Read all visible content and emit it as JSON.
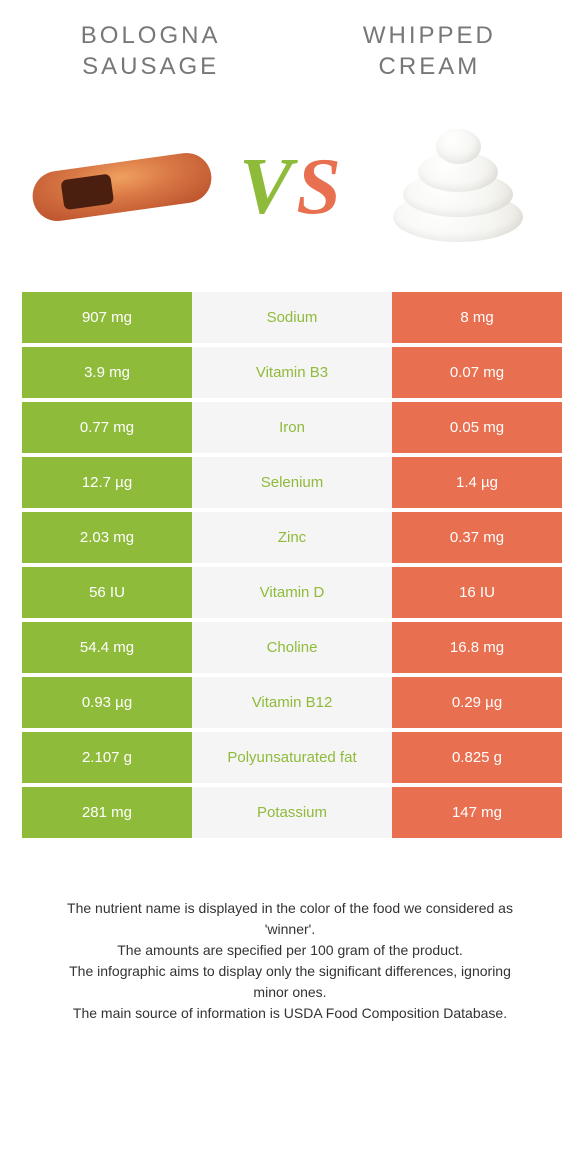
{
  "header": {
    "left_line1": "BOLOGNA",
    "left_line2": "SAUSAGE",
    "right_line1": "WHIPPED",
    "right_line2": "CREAM"
  },
  "vs": {
    "v": "V",
    "s": "S"
  },
  "colors": {
    "left_bg": "#8fbb3a",
    "right_bg": "#e86f4f",
    "mid_bg": "#f6f5f5",
    "mid_text_left": "#8fbb3a",
    "mid_text_right": "#e86f4f"
  },
  "rows": [
    {
      "left": "907 mg",
      "label": "Sodium",
      "right": "8 mg",
      "winner": "left"
    },
    {
      "left": "3.9 mg",
      "label": "Vitamin B3",
      "right": "0.07 mg",
      "winner": "left"
    },
    {
      "left": "0.77 mg",
      "label": "Iron",
      "right": "0.05 mg",
      "winner": "left"
    },
    {
      "left": "12.7 µg",
      "label": "Selenium",
      "right": "1.4 µg",
      "winner": "left"
    },
    {
      "left": "2.03 mg",
      "label": "Zinc",
      "right": "0.37 mg",
      "winner": "left"
    },
    {
      "left": "56 IU",
      "label": "Vitamin D",
      "right": "16 IU",
      "winner": "left"
    },
    {
      "left": "54.4 mg",
      "label": "Choline",
      "right": "16.8 mg",
      "winner": "left"
    },
    {
      "left": "0.93 µg",
      "label": "Vitamin B12",
      "right": "0.29 µg",
      "winner": "left"
    },
    {
      "left": "2.107 g",
      "label": "Polyunsaturated fat",
      "right": "0.825 g",
      "winner": "left"
    },
    {
      "left": "281 mg",
      "label": "Potassium",
      "right": "147 mg",
      "winner": "left"
    }
  ],
  "footnotes": {
    "line1": "The nutrient name is displayed in the color of the food we considered as 'winner'.",
    "line2": "The amounts are specified per 100 gram of the product.",
    "line3": "The infographic aims to display only the significant differences, ignoring minor ones.",
    "line4": "The main source of information is USDA Food Composition Database."
  }
}
